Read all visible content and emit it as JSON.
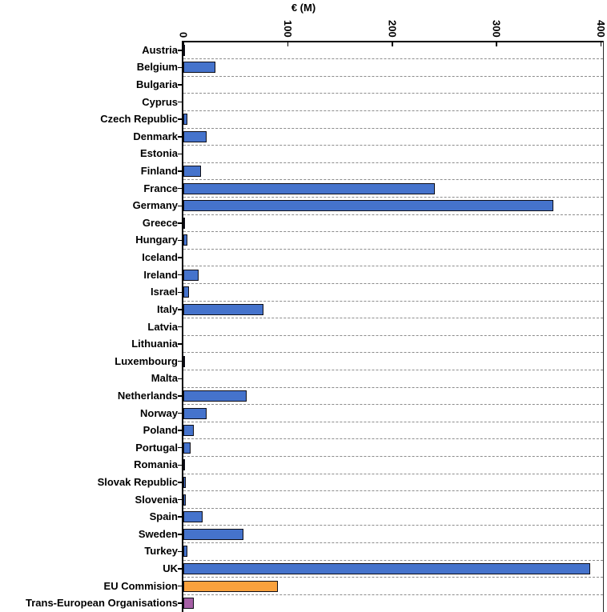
{
  "chart_data": {
    "type": "bar",
    "orientation": "horizontal",
    "title": "€ (M)",
    "xlabel": "€ (M)",
    "ylabel": "",
    "xlim": [
      0,
      400
    ],
    "xticks": [
      0,
      100,
      200,
      300,
      400
    ],
    "grid": "horizontal dashed gridlines between category rows",
    "legend_position": "none",
    "categories": [
      "Austria",
      "Belgium",
      "Bulgaria",
      "Cyprus",
      "Czech Republic",
      "Denmark",
      "Estonia",
      "Finland",
      "France",
      "Germany",
      "Greece",
      "Hungary",
      "Iceland",
      "Ireland",
      "Israel",
      "Italy",
      "Latvia",
      "Lithuania",
      "Luxembourg",
      "Malta",
      "Netherlands",
      "Norway",
      "Poland",
      "Portugal",
      "Romania",
      "Slovak Republic",
      "Slovenia",
      "Spain",
      "Sweden",
      "Turkey",
      "UK",
      "EU Commision",
      "Trans-European Organisations"
    ],
    "values": [
      2,
      31,
      0,
      0,
      4,
      23,
      0,
      17,
      241,
      355,
      1,
      4,
      0,
      15,
      6,
      77,
      0,
      0,
      1,
      0,
      61,
      23,
      10,
      7,
      1,
      3,
      3,
      19,
      58,
      4,
      390,
      91,
      10
    ],
    "colors": {
      "default_bar": "#4573CC",
      "eu_commision_bar": "#F9A13D",
      "trans_european_bar": "#A55FA5",
      "bar_border": "#0d0d16",
      "gridline": "#8c8c8c",
      "axis": "#000000"
    }
  }
}
